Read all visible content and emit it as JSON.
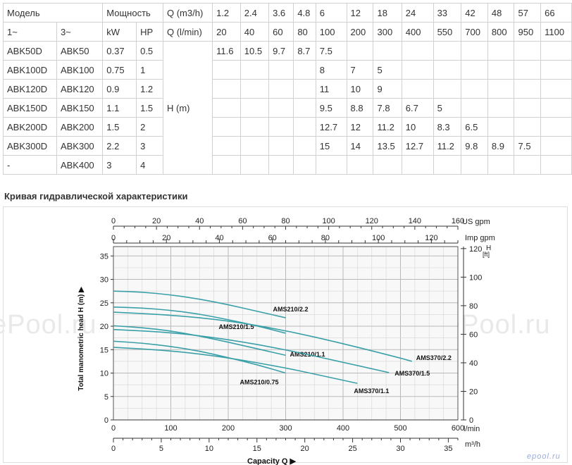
{
  "table": {
    "header1": [
      "Модель",
      "Мощность",
      "Q (m3/h)",
      "1.2",
      "2.4",
      "3.6",
      "4.8",
      "6",
      "12",
      "18",
      "24",
      "33",
      "42",
      "48",
      "57",
      "66"
    ],
    "header2": [
      "1~",
      "3~",
      "kW",
      "HP",
      "Q (l/min)",
      "20",
      "40",
      "60",
      "80",
      "100",
      "200",
      "300",
      "400",
      "550",
      "700",
      "800",
      "950",
      "1100"
    ],
    "h_label": "H (m)",
    "rows": [
      {
        "m1": "ABK50D",
        "m3": "ABK50",
        "kw": "0.37",
        "hp": "0.5",
        "h": [
          "11.6",
          "10.5",
          "9.7",
          "8.7",
          "7.5",
          "",
          "",
          "",
          "",
          "",
          "",
          "",
          ""
        ]
      },
      {
        "m1": "ABK100D",
        "m3": "ABK100",
        "kw": "0.75",
        "hp": "1",
        "h": [
          "",
          "",
          "",
          "",
          "8",
          "7",
          "5",
          "",
          "",
          "",
          "",
          "",
          ""
        ]
      },
      {
        "m1": "ABK120D",
        "m3": "ABK120",
        "kw": "0.9",
        "hp": "1.2",
        "h": [
          "",
          "",
          "",
          "",
          "11",
          "10",
          "9",
          "",
          "",
          "",
          "",
          "",
          ""
        ]
      },
      {
        "m1": "ABK150D",
        "m3": "ABK150",
        "kw": "1.1",
        "hp": "1.5",
        "h": [
          "",
          "",
          "",
          "",
          "9.5",
          "8.8",
          "7.8",
          "6.7",
          "5",
          "",
          "",
          "",
          ""
        ]
      },
      {
        "m1": "ABK200D",
        "m3": "ABK200",
        "kw": "1.5",
        "hp": "2",
        "h": [
          "",
          "",
          "",
          "",
          "12.7",
          "12",
          "11.2",
          "10",
          "8.3",
          "6.5",
          "",
          "",
          ""
        ]
      },
      {
        "m1": "ABK300D",
        "m3": "ABK300",
        "kw": "2.2",
        "hp": "3",
        "h": [
          "",
          "",
          "",
          "",
          "15",
          "14",
          "13.5",
          "12.7",
          "11.2",
          "9.8",
          "8.9",
          "7.5",
          ""
        ]
      },
      {
        "m1": "-",
        "m3": "ABK400",
        "kw": "3",
        "hp": "4",
        "h": [
          "",
          "",
          "",
          "",
          "",
          "",
          "",
          "",
          "",
          "",
          "",
          "",
          ""
        ]
      }
    ]
  },
  "section_title": "Кривая гидравлической характеристики",
  "watermark": "ePool.ru",
  "logo_text": "epool.ru",
  "chart_data": {
    "type": "line",
    "xlabel": "Capacity Q",
    "ylabel": "Total manometric head H (m)",
    "x_unit_lmin": "l/min",
    "x_unit_m3h": "m³/h",
    "top_axis_usgpm": "US gpm",
    "top_axis_impgpm": "Imp gpm",
    "right_axis_label_h": "H",
    "right_axis_label_ft": "[ft]",
    "xlim_lmin": [
      0,
      600
    ],
    "ylim_m": [
      0,
      37
    ],
    "grid": true,
    "ticks": {
      "lmin": [
        0,
        100,
        200,
        300,
        400,
        500,
        600
      ],
      "m3h": [
        0,
        5,
        10,
        15,
        20,
        25,
        30,
        35
      ],
      "usgpm": [
        0,
        20,
        40,
        60,
        80,
        100,
        120,
        140,
        160
      ],
      "impgpm": [
        0,
        20,
        40,
        60,
        80,
        100,
        120
      ],
      "head_m": [
        0,
        5,
        10,
        15,
        20,
        25,
        30,
        35
      ],
      "head_ft": [
        0,
        20,
        40,
        60,
        80,
        100,
        120
      ]
    },
    "series": [
      {
        "name": "AMS210/2.2",
        "x": [
          0,
          50,
          100,
          150,
          200,
          250,
          300
        ],
        "y": [
          27.5,
          27.3,
          26.7,
          25.8,
          24.6,
          23.2,
          21.8
        ]
      },
      {
        "name": "AMS210/1.5",
        "x": [
          0,
          50,
          100,
          150,
          200,
          250,
          300
        ],
        "y": [
          24.1,
          23.9,
          23.4,
          22.6,
          21.4,
          20.1,
          18.5
        ]
      },
      {
        "name": "AMS210/1.1",
        "x": [
          0,
          50,
          100,
          150,
          200,
          250,
          300
        ],
        "y": [
          20.1,
          19.7,
          19.0,
          17.9,
          16.6,
          15.2,
          13.8
        ]
      },
      {
        "name": "AMS210/0.75",
        "x": [
          0,
          50,
          100,
          150,
          200,
          250,
          300
        ],
        "y": [
          16.8,
          16.4,
          15.7,
          14.7,
          13.3,
          11.8,
          10.0
        ]
      },
      {
        "name": "AMS370/2.2",
        "x": [
          0,
          100,
          200,
          300,
          400,
          500,
          520
        ],
        "y": [
          23.0,
          22.4,
          21.2,
          19.1,
          16.3,
          13.2,
          12.5
        ]
      },
      {
        "name": "AMS370/1.5",
        "x": [
          0,
          100,
          200,
          300,
          400,
          480
        ],
        "y": [
          19.3,
          18.7,
          17.2,
          15.0,
          12.3,
          10.1
        ]
      },
      {
        "name": "AMS370/1.1",
        "x": [
          0,
          100,
          200,
          300,
          350,
          425
        ],
        "y": [
          15.5,
          14.8,
          13.3,
          11.1,
          9.8,
          7.8
        ]
      }
    ]
  }
}
